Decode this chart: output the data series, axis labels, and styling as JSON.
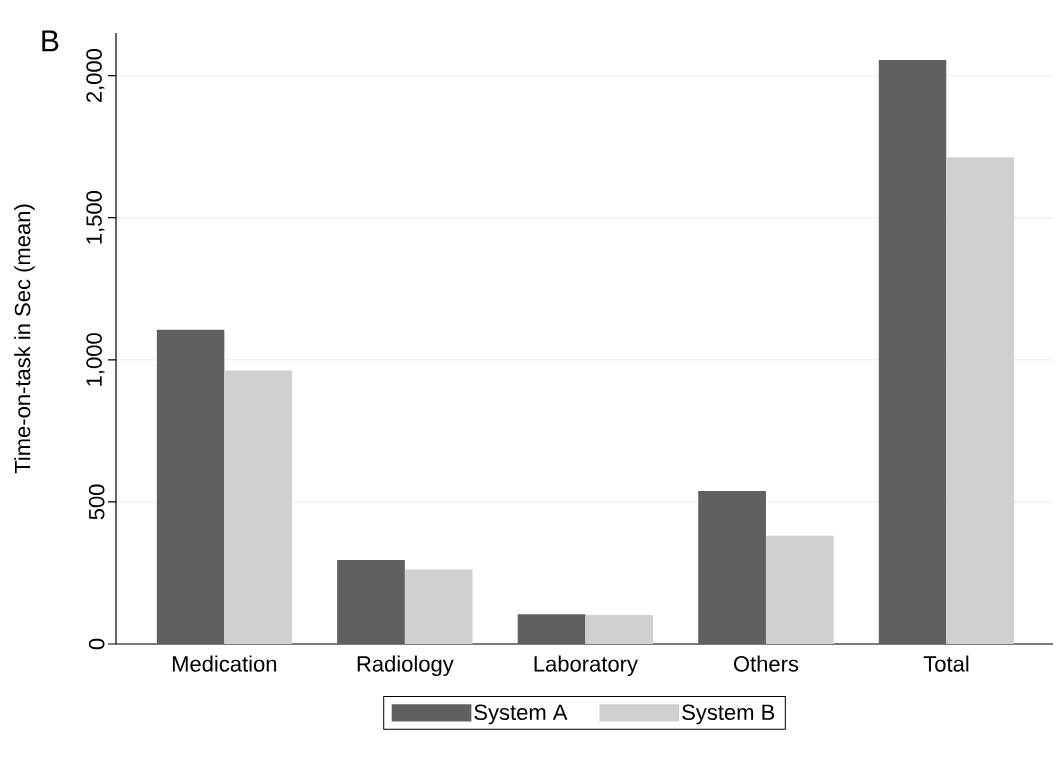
{
  "chart_data": {
    "type": "bar",
    "title": "B",
    "ylabel": "Time-on-task in Sec (mean)",
    "categories": [
      "Medication",
      "Radiology",
      "Laboratory",
      "Others",
      "Total"
    ],
    "series": [
      {
        "name": "System A",
        "color": "#606060",
        "values": [
          1106,
          296,
          105,
          538,
          2055
        ]
      },
      {
        "name": "System B",
        "color": "#d0d0d0",
        "values": [
          962,
          262,
          102,
          381,
          1713
        ]
      }
    ],
    "ylim": [
      0,
      2150
    ],
    "yticks": [
      0,
      {
        "value": 500,
        "label": "500"
      },
      {
        "value": 1000,
        "label": "1,000"
      },
      {
        "value": 1500,
        "label": "1,500"
      },
      {
        "value": 2000,
        "label": "2,000"
      }
    ],
    "grid": "y",
    "legend": "bottom"
  }
}
